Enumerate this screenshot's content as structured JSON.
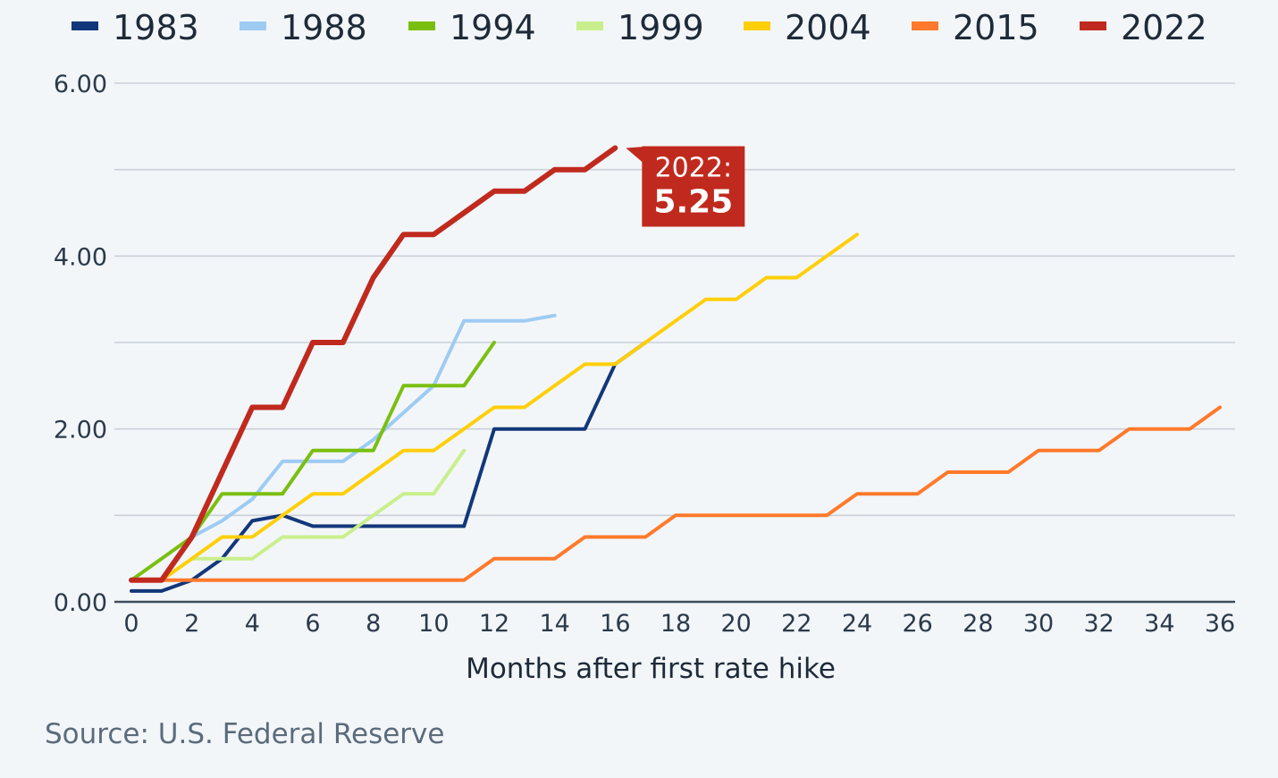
{
  "chart_data": {
    "type": "line",
    "xlabel": "Months after first rate hike",
    "ylabel": "",
    "xlim": [
      0,
      36
    ],
    "ylim": [
      0,
      6
    ],
    "x_ticks": [
      0,
      2,
      4,
      6,
      8,
      10,
      12,
      14,
      16,
      18,
      20,
      22,
      24,
      26,
      28,
      30,
      32,
      34,
      36
    ],
    "y_ticks": [
      0,
      2,
      4,
      6
    ],
    "y_tick_labels": [
      "0.00",
      "2.00",
      "4.00",
      "6.00"
    ],
    "grid": true,
    "legend_position": "top",
    "series": [
      {
        "name": "1983",
        "color": "#12377a",
        "x": [
          0,
          1,
          2,
          3,
          4,
          5,
          6,
          7,
          8,
          9,
          10,
          11,
          12,
          13,
          14,
          15,
          16,
          17
        ],
        "y": [
          0.125,
          0.125,
          0.25,
          0.5,
          0.9375,
          1.0,
          0.875,
          0.875,
          0.875,
          0.875,
          0.875,
          0.875,
          2.0,
          2.0,
          2.0,
          2.0,
          2.75,
          3.0
        ]
      },
      {
        "name": "1988",
        "color": "#9ecbf2",
        "x": [
          0,
          1,
          2,
          3,
          4,
          5,
          6,
          7,
          8,
          9,
          10,
          11,
          12,
          13,
          14
        ],
        "y": [
          0.25,
          0.25,
          0.75,
          0.9375,
          1.1875,
          1.625,
          1.625,
          1.625,
          1.875,
          2.1875,
          2.5,
          3.25,
          3.25,
          3.25,
          3.3125
        ]
      },
      {
        "name": "1994",
        "color": "#7abf10",
        "x": [
          0,
          1,
          2,
          3,
          4,
          5,
          6,
          7,
          8,
          9,
          10,
          11,
          12
        ],
        "y": [
          0.25,
          0.5,
          0.75,
          1.25,
          1.25,
          1.25,
          1.75,
          1.75,
          1.75,
          2.5,
          2.5,
          2.5,
          3.0
        ]
      },
      {
        "name": "1999",
        "color": "#c9ef8c",
        "x": [
          0,
          1,
          2,
          3,
          4,
          5,
          6,
          7,
          8,
          9,
          10,
          11
        ],
        "y": [
          0.25,
          0.25,
          0.5,
          0.5,
          0.5,
          0.75,
          0.75,
          0.75,
          1.0,
          1.25,
          1.25,
          1.75
        ]
      },
      {
        "name": "2004",
        "color": "#ffcf0a",
        "x": [
          0,
          1,
          2,
          3,
          4,
          5,
          6,
          7,
          8,
          9,
          10,
          11,
          12,
          13,
          14,
          15,
          16,
          17,
          18,
          19,
          20,
          21,
          22,
          23,
          24
        ],
        "y": [
          0.25,
          0.25,
          0.5,
          0.75,
          0.75,
          1.0,
          1.25,
          1.25,
          1.5,
          1.75,
          1.75,
          2.0,
          2.25,
          2.25,
          2.5,
          2.75,
          2.75,
          3.0,
          3.25,
          3.5,
          3.5,
          3.75,
          3.75,
          4.0,
          4.25
        ]
      },
      {
        "name": "2015",
        "color": "#ff7a2c",
        "x": [
          0,
          1,
          2,
          3,
          4,
          5,
          6,
          7,
          8,
          9,
          10,
          11,
          12,
          13,
          14,
          15,
          16,
          17,
          18,
          19,
          20,
          21,
          22,
          23,
          24,
          25,
          26,
          27,
          28,
          29,
          30,
          31,
          32,
          33,
          34,
          35,
          36
        ],
        "y": [
          0.25,
          0.25,
          0.25,
          0.25,
          0.25,
          0.25,
          0.25,
          0.25,
          0.25,
          0.25,
          0.25,
          0.25,
          0.5,
          0.5,
          0.5,
          0.75,
          0.75,
          0.75,
          1.0,
          1.0,
          1.0,
          1.0,
          1.0,
          1.0,
          1.25,
          1.25,
          1.25,
          1.5,
          1.5,
          1.5,
          1.75,
          1.75,
          1.75,
          2.0,
          2.0,
          2.0,
          2.25
        ]
      },
      {
        "name": "2022",
        "color": "#c02a1e",
        "x": [
          0,
          1,
          2,
          3,
          4,
          5,
          6,
          7,
          8,
          9,
          10,
          11,
          12,
          13,
          14,
          15,
          16
        ],
        "y": [
          0.25,
          0.25,
          0.75,
          1.5,
          2.25,
          2.25,
          3.0,
          3.0,
          3.75,
          4.25,
          4.25,
          4.5,
          4.75,
          4.75,
          5.0,
          5.0,
          5.25
        ]
      }
    ],
    "annotations": [
      {
        "series": "2022",
        "x": 16,
        "y": 5.25,
        "label": "2022:",
        "value": "5.25",
        "color": "#c02a1e"
      }
    ],
    "source": "Source: U.S. Federal Reserve"
  }
}
